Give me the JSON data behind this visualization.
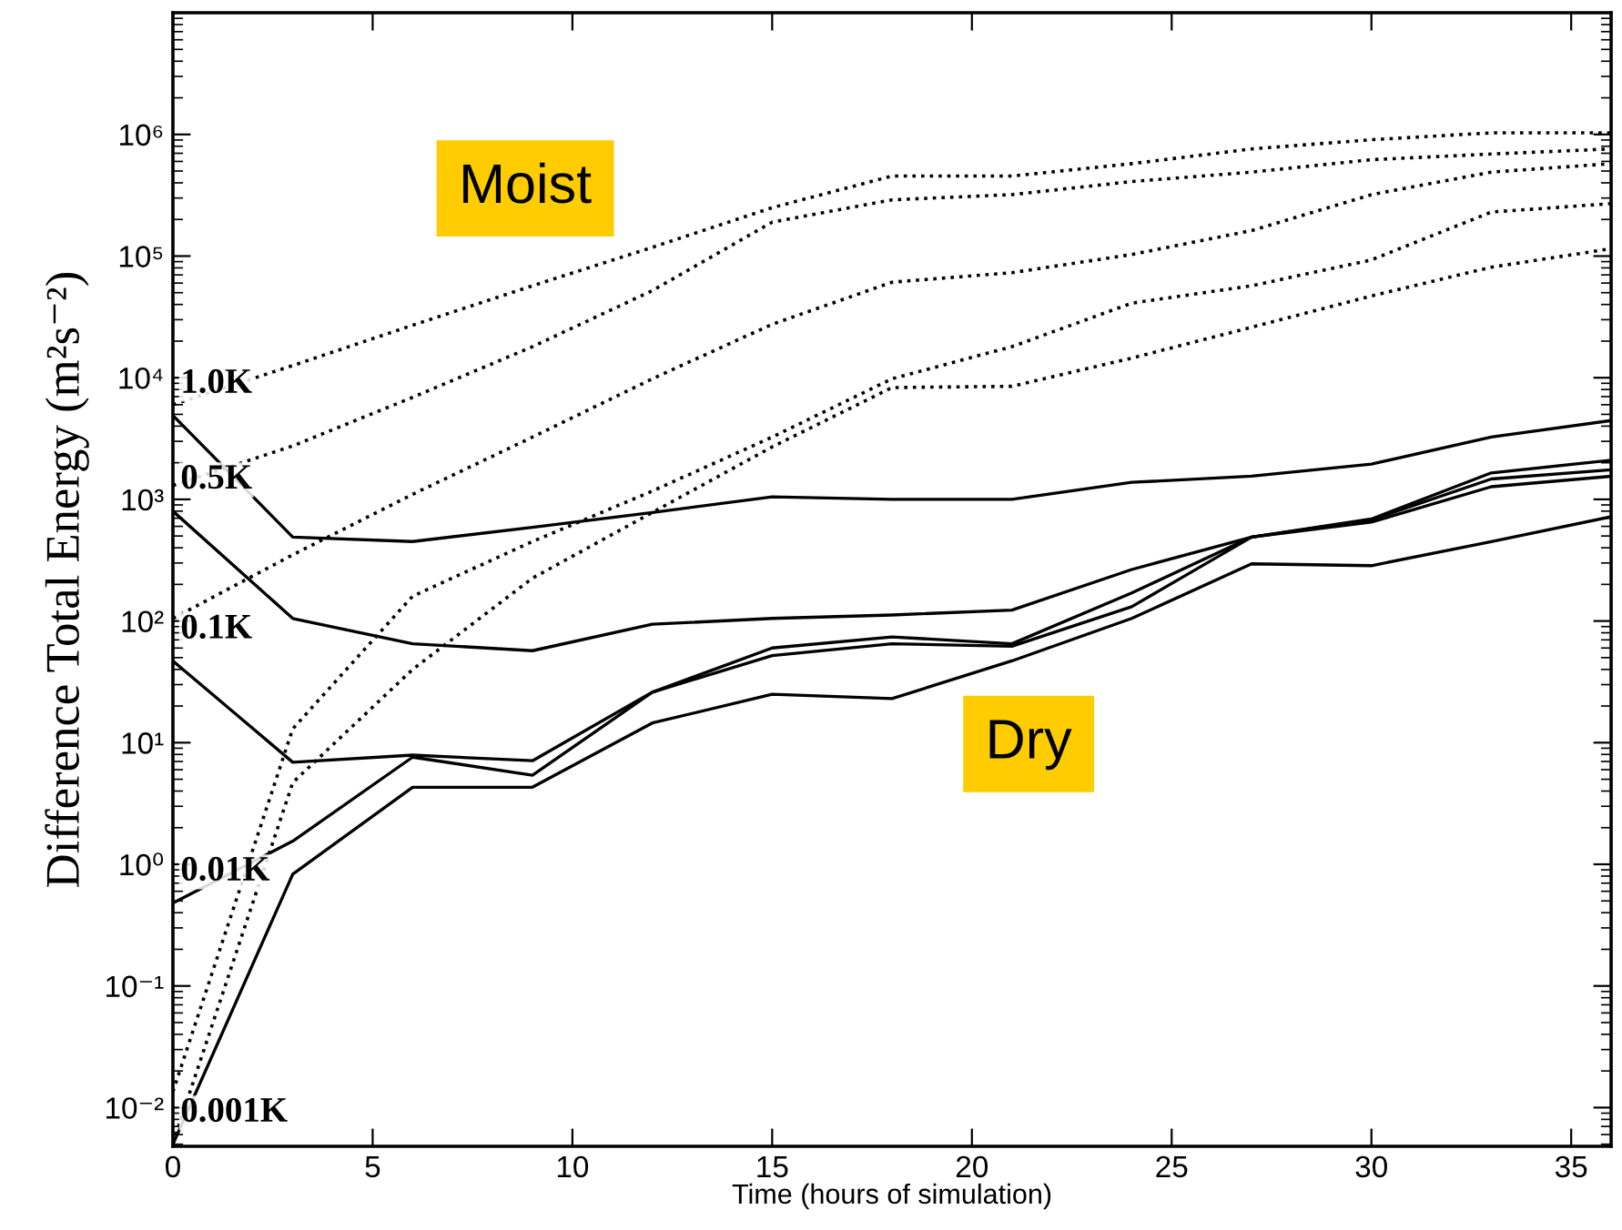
{
  "chart_data": {
    "type": "line",
    "xlabel": "Time (hours of simulation)",
    "ylabel": "Difference Total Energy (m²s⁻²)",
    "x": [
      0,
      3,
      6,
      9,
      12,
      15,
      18,
      21,
      24,
      27,
      30,
      33,
      36
    ],
    "xlim": [
      0,
      36
    ],
    "xticks": [
      0,
      5,
      10,
      15,
      20,
      25,
      30,
      35
    ],
    "log": "y",
    "ylim": [
      0.0048,
      10000000
    ],
    "yticks": [
      {
        "value": 0.01,
        "label": "10⁻²"
      },
      {
        "value": 0.1,
        "label": "10⁻¹"
      },
      {
        "value": 1,
        "label": "10⁰"
      },
      {
        "value": 10,
        "label": "10¹"
      },
      {
        "value": 100,
        "label": "10²"
      },
      {
        "value": 1000,
        "label": "10³"
      },
      {
        "value": 10000,
        "label": "10⁴"
      },
      {
        "value": 100000,
        "label": "10⁵"
      },
      {
        "value": 1000000,
        "label": "10⁶"
      }
    ],
    "grid": false,
    "marker": "none",
    "series": [
      {
        "name": "1.0K",
        "color": "#000000",
        "line_style": "solid",
        "values": [
          4900,
          490,
          450,
          590,
          780,
          1050,
          1000,
          1000,
          1380,
          1550,
          1950,
          3250,
          4450
        ]
      },
      {
        "name": "0.5K",
        "color": "#000000",
        "line_style": "solid",
        "values": [
          800,
          105,
          65,
          57,
          94,
          105,
          112,
          123,
          265,
          490,
          690,
          1650,
          2100
        ]
      },
      {
        "name": "0.1K",
        "color": "#000000",
        "line_style": "solid",
        "values": [
          47,
          6.9,
          7.9,
          7.1,
          26,
          60,
          74,
          65,
          170,
          490,
          680,
          1470,
          1750
        ]
      },
      {
        "name": "0.01K",
        "color": "#000000",
        "line_style": "solid",
        "values": [
          0.48,
          1.55,
          7.6,
          5.4,
          26,
          52,
          65,
          62,
          131,
          490,
          650,
          1270,
          1550
        ]
      },
      {
        "name": "0.001K",
        "color": "#000000",
        "line_style": "solid",
        "values": [
          0.005,
          0.83,
          4.3,
          4.3,
          14.5,
          25,
          23,
          47,
          105,
          295,
          285,
          450,
          720
        ]
      },
      {
        "color": "#000000",
        "line_style": "dotted",
        "values": [
          6000,
          12600,
          27000,
          57000,
          118000,
          250000,
          455000,
          455000,
          575000,
          760000,
          905000,
          1030000,
          1030000
        ]
      },
      {
        "color": "#000000",
        "line_style": "dotted",
        "values": [
          1300,
          2750,
          6900,
          18000,
          52000,
          190000,
          290000,
          320000,
          410000,
          490000,
          620000,
          690000,
          760000
        ]
      },
      {
        "color": "#000000",
        "line_style": "dotted",
        "values": [
          105,
          350,
          1100,
          3250,
          9800,
          27500,
          61000,
          73000,
          103000,
          162000,
          320000,
          490000,
          575000
        ]
      },
      {
        "color": "#000000",
        "line_style": "dotted",
        "values": [
          0.0135,
          13,
          160,
          450,
          1170,
          3250,
          9800,
          18000,
          41000,
          57000,
          93000,
          230000,
          270000
        ]
      },
      {
        "color": "#000000",
        "line_style": "dotted",
        "values": [
          0.0051,
          4.7,
          40,
          225,
          780,
          2700,
          8300,
          8500,
          14500,
          26000,
          47000,
          81000,
          115000
        ]
      }
    ],
    "annotations": [
      "Moist",
      "Dry"
    ]
  }
}
